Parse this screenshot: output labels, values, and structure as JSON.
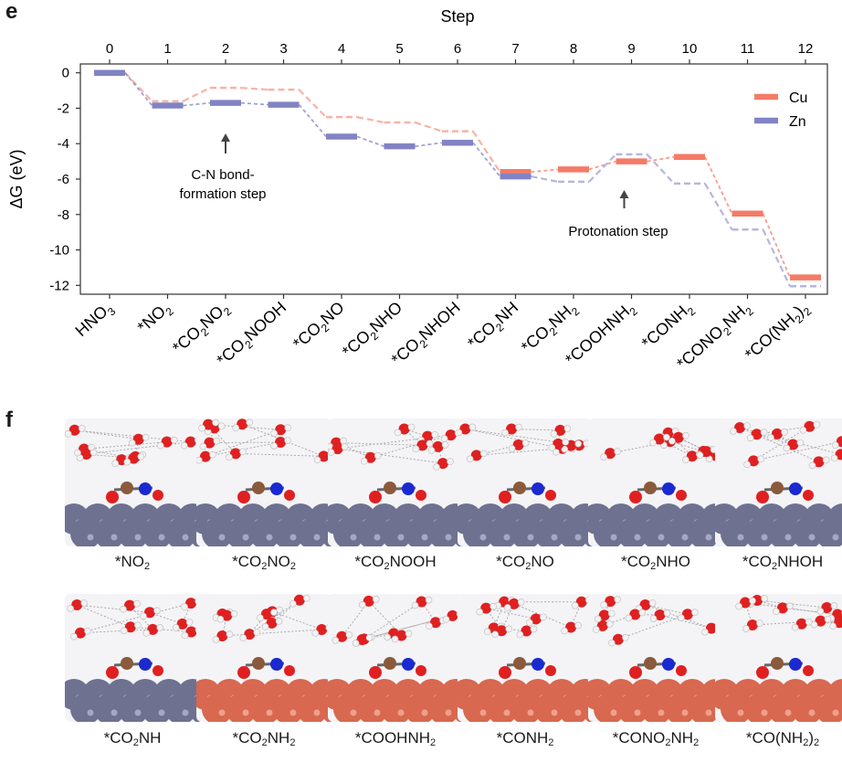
{
  "panels": {
    "e": "e",
    "f": "f"
  },
  "chart_data": {
    "type": "line",
    "title": "",
    "top_axis_label": "Step",
    "ylabel": "ΔG (eV)",
    "ylim": [
      -12.5,
      0.5
    ],
    "yticks": [
      0,
      -2,
      -4,
      -6,
      -8,
      -10,
      -12
    ],
    "steps": [
      0,
      1,
      2,
      3,
      4,
      5,
      6,
      7,
      8,
      9,
      10,
      11,
      12
    ],
    "intermediates": [
      "HNO3",
      "*NO2",
      "*CO2NO2",
      "*CO2NOOH",
      "*CO2NO",
      "*CO2NHO",
      "*CO2NHOH",
      "*CO2NH",
      "*CO2NH2",
      "*COOHNH2",
      "*CONH2",
      "*CONO2NH2",
      "*CO(NH2)2"
    ],
    "colors": {
      "Cu": "#f47b67",
      "Zn": "#8283c4"
    },
    "series": [
      {
        "name": "Cu",
        "values": [
          0.0,
          -1.6,
          -0.85,
          -0.95,
          -2.5,
          -2.8,
          -3.3,
          -5.6,
          -5.45,
          -5.0,
          -4.75,
          -7.95,
          -11.55
        ],
        "solid_steps": [
          7,
          8,
          9,
          10,
          11,
          12
        ]
      },
      {
        "name": "Zn",
        "values": [
          0.0,
          -1.85,
          -1.7,
          -1.8,
          -3.6,
          -4.15,
          -3.95,
          -5.85,
          -6.15,
          -4.6,
          -6.25,
          -8.85,
          -12.05
        ],
        "solid_steps": [
          0,
          1,
          2,
          3,
          4,
          5,
          6,
          7
        ]
      }
    ],
    "legend": [
      "Cu",
      "Zn"
    ],
    "legend_position": "top-right",
    "annotations": [
      {
        "text_lines": [
          "C-N bond-",
          "formation step"
        ],
        "step": 2
      },
      {
        "text_lines": [
          "Protonation step"
        ],
        "step": 9
      }
    ]
  },
  "structures": [
    {
      "label": "*NO2",
      "surface": "Zn"
    },
    {
      "label": "*CO2NO2",
      "surface": "Zn"
    },
    {
      "label": "*CO2NOOH",
      "surface": "Zn"
    },
    {
      "label": "*CO2NO",
      "surface": "Zn"
    },
    {
      "label": "*CO2NHO",
      "surface": "Zn"
    },
    {
      "label": "*CO2NHOH",
      "surface": "Zn"
    },
    {
      "label": "*CO2NH",
      "surface": "Zn"
    },
    {
      "label": "*CO2NH2",
      "surface": "Cu"
    },
    {
      "label": "*COOHNH2",
      "surface": "Cu"
    },
    {
      "label": "*CONH2",
      "surface": "Cu"
    },
    {
      "label": "*CONO2NH2",
      "surface": "Cu"
    },
    {
      "label": "*CO(NH2)2",
      "surface": "Cu"
    }
  ]
}
